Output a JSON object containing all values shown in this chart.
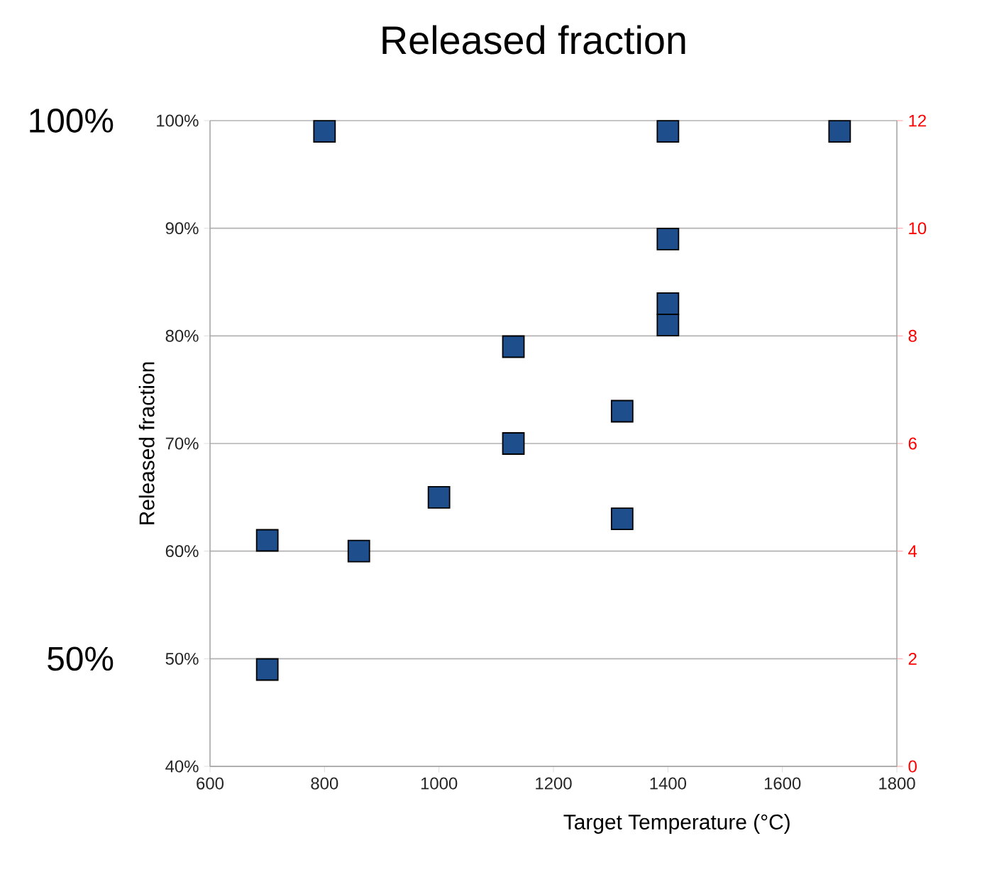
{
  "chart_data": {
    "type": "scatter",
    "title": "Released fraction",
    "xlabel": "Target Temperature (°C)",
    "ylabel": "Released fraction",
    "annotations": [
      "100%",
      "50%"
    ],
    "x": [
      700,
      700,
      800,
      860,
      1000,
      1130,
      1130,
      1320,
      1320,
      1400,
      1400,
      1400,
      1400,
      1700
    ],
    "series": [
      {
        "color": "#1f4e8c",
        "values": [
          61,
          49,
          99,
          60,
          65,
          79,
          70,
          73,
          63,
          99,
          89,
          83,
          81,
          99
        ]
      }
    ],
    "marker": "square",
    "grid": "y",
    "xlim": [
      600,
      1800
    ],
    "xticks": [
      600,
      800,
      1000,
      1200,
      1400,
      1600,
      1800
    ],
    "ylim": [
      40,
      100
    ],
    "yticks": [
      {
        "value": 40,
        "label": "40%"
      },
      {
        "value": 50,
        "label": "50%"
      },
      {
        "value": 60,
        "label": "60%"
      },
      {
        "value": 70,
        "label": "70%"
      },
      {
        "value": 80,
        "label": "80%"
      },
      {
        "value": 90,
        "label": "90%"
      },
      {
        "value": 100,
        "label": "100%"
      }
    ],
    "y2lim": [
      0,
      12
    ],
    "y2ticks": [
      0,
      2,
      4,
      6,
      8,
      10,
      12
    ]
  }
}
